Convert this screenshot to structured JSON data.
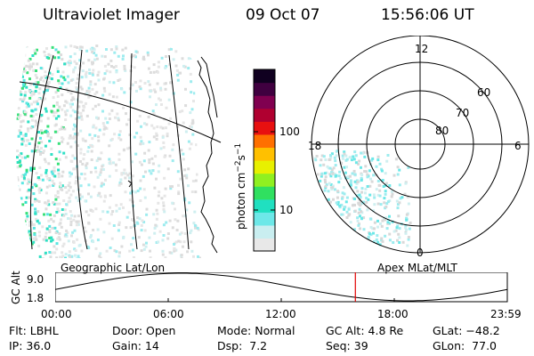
{
  "header": {
    "title": "Ultraviolet Imager",
    "date": "09 Oct 07",
    "time": "15:56:06 UT"
  },
  "colorbar": {
    "label_main": "photon cm",
    "label_exp1": "−2",
    "label_mid": "s",
    "label_exp2": "−1",
    "ticks": [
      {
        "value": 100,
        "label": "100"
      },
      {
        "value": 10,
        "label": "10"
      }
    ],
    "colors": [
      "#e8e8e8",
      "#c9eef0",
      "#6de8e8",
      "#20e0c0",
      "#30e060",
      "#90f020",
      "#e8f000",
      "#ffc000",
      "#ff7000",
      "#e81010",
      "#b00030",
      "#800050",
      "#400040",
      "#100020"
    ]
  },
  "polar": {
    "hour_labels": {
      "noon": "12",
      "dusk": "18",
      "dawn": "6",
      "midnight": "0"
    },
    "lat_labels": [
      "60",
      "70",
      "80"
    ]
  },
  "map": {
    "left_label": "Geographic Lat/Lon",
    "right_label": "Apex MLat/MLT"
  },
  "timeline": {
    "ylabel": "GC Alt",
    "ytop": "9.0",
    "ybot": "1.8",
    "xticks": [
      "00:00",
      "06:00",
      "12:00",
      "18:00",
      "23:59"
    ],
    "marker_hour": 15.935,
    "marker_color": "#e00000"
  },
  "info": {
    "row1": [
      {
        "key": "Flt:",
        "val": "LBHL"
      },
      {
        "key": "Door:",
        "val": "Open"
      },
      {
        "key": "Mode:",
        "val": "Normal"
      },
      {
        "key": "GC Alt:",
        "val": "4.8 Re"
      },
      {
        "key": "GLat:",
        "val": "−48.2"
      }
    ],
    "row2": [
      {
        "key": "IP:",
        "val": "36.0"
      },
      {
        "key": "Gain:",
        "val": "14"
      },
      {
        "key": "Dsp:",
        "val": "7.2"
      },
      {
        "key": "Seq:",
        "val": "39"
      },
      {
        "key": "GLon:",
        "val": "77.0"
      }
    ]
  }
}
